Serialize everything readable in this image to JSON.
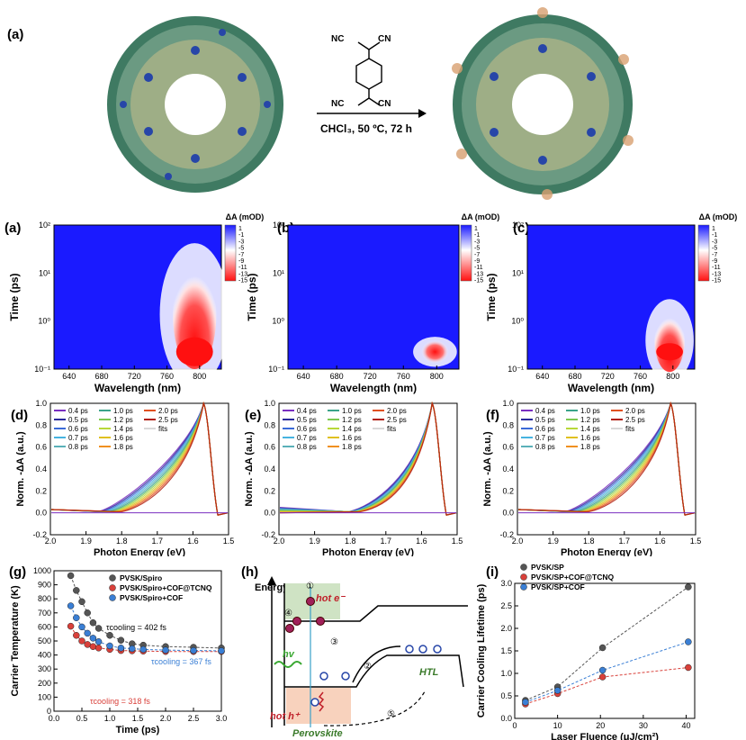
{
  "top": {
    "panel_label": "(a)",
    "reagent_cn": "CN",
    "reagent_nc": "NC",
    "conditions": "CHCl₃, 50 ºC, 72 h"
  },
  "heatmaps": {
    "labels": [
      "(a)",
      "(b)",
      "(c)"
    ],
    "cbar_title": "ΔA (mOD)",
    "cbar_ticks": [
      "1",
      "-1",
      "-3",
      "-5",
      "-7",
      "-9",
      "-11",
      "-13",
      "-15"
    ],
    "ylabel": "Time (ps)",
    "xlabel": "Wavelength (nm)",
    "xticks": [
      "640",
      "680",
      "720",
      "760",
      "800"
    ],
    "yticks": [
      "10⁻¹",
      "10⁰",
      "10¹",
      "10²"
    ]
  },
  "spectra": {
    "labels": [
      "(d)",
      "(e)",
      "(f)"
    ],
    "ylabel": "Norm. -ΔA (a.u.)",
    "xlabel": "Photon Energy (eV)",
    "xticks": [
      "2.0",
      "1.9",
      "1.8",
      "1.7",
      "1.6",
      "1.5"
    ],
    "yticks": [
      "-0.2",
      "0.0",
      "0.2",
      "0.4",
      "0.6",
      "0.8",
      "1.0"
    ],
    "legend": [
      "0.4 ps",
      "0.5 ps",
      "0.6 ps",
      "0.7 ps",
      "0.8 ps",
      "1.0 ps",
      "1.2 ps",
      "1.4 ps",
      "1.6 ps",
      "1.8 ps",
      "2.0 ps",
      "2.5 ps",
      "fits"
    ],
    "legend_colors": [
      "#7a2fc0",
      "#2a2a9a",
      "#3a6ad8",
      "#46b3e0",
      "#5ab0b8",
      "#3aa38a",
      "#7cc850",
      "#b8d838",
      "#e0c020",
      "#f09020",
      "#e05020",
      "#b02010",
      "#b0b0b0"
    ]
  },
  "chart_data": [
    {
      "type": "scatter",
      "panel": "(g)",
      "xlabel": "Time (ps)",
      "ylabel": "Carrier Temperature (K)",
      "xlim": [
        0,
        3.0
      ],
      "ylim": [
        0,
        1000
      ],
      "xticks": [
        "0.0",
        "0.5",
        "1.0",
        "1.5",
        "2.0",
        "2.5",
        "3.0"
      ],
      "yticks": [
        "0",
        "100",
        "200",
        "300",
        "400",
        "500",
        "600",
        "700",
        "800",
        "900",
        "1000"
      ],
      "annotations": [
        "τcooling = 402 fs",
        "τcooling = 367 fs",
        "τcooling = 318 fs"
      ],
      "legend_position": "top-right",
      "series": [
        {
          "name": "PVSK/Spiro",
          "color": "#555555",
          "x": [
            0.3,
            0.4,
            0.5,
            0.6,
            0.7,
            0.8,
            1.0,
            1.2,
            1.4,
            1.6,
            2.0,
            2.5,
            3.0
          ],
          "y": [
            965,
            860,
            780,
            700,
            630,
            590,
            540,
            505,
            480,
            470,
            460,
            455,
            450
          ]
        },
        {
          "name": "PVSK/Spiro+COF@TCNQ",
          "color": "#d9403a",
          "x": [
            0.3,
            0.4,
            0.5,
            0.6,
            0.7,
            0.8,
            1.0,
            1.2,
            1.4,
            1.6,
            2.0,
            2.5,
            3.0
          ],
          "y": [
            605,
            540,
            500,
            475,
            460,
            450,
            440,
            432,
            430,
            428,
            425,
            425,
            425
          ]
        },
        {
          "name": "PVSK/Spiro+COF",
          "color": "#3a7fd5",
          "x": [
            0.3,
            0.4,
            0.5,
            0.6,
            0.7,
            0.8,
            1.0,
            1.2,
            1.4,
            1.6,
            2.0,
            2.5,
            3.0
          ],
          "y": [
            750,
            665,
            600,
            555,
            520,
            495,
            465,
            450,
            445,
            440,
            435,
            432,
            430
          ]
        }
      ]
    },
    {
      "type": "scatter",
      "panel": "(i)",
      "xlabel": "Laser Fluence (μJ/cm²)",
      "ylabel": "Carrier Cooling Lifetime (ps)",
      "xlim": [
        0,
        42
      ],
      "ylim": [
        0,
        3.0
      ],
      "xticks": [
        "0",
        "10",
        "20",
        "30",
        "40"
      ],
      "yticks": [
        "0.0",
        "0.5",
        "1.0",
        "1.5",
        "2.0",
        "2.5",
        "3.0"
      ],
      "legend_position": "top-left",
      "series": [
        {
          "name": "PVSK/SP",
          "color": "#555555",
          "x": [
            2.5,
            10,
            20.5,
            40.5
          ],
          "y": [
            0.4,
            0.7,
            1.57,
            2.92
          ]
        },
        {
          "name": "PVSK/SP+COF@TCNQ",
          "color": "#d9403a",
          "x": [
            2.5,
            10,
            20.5,
            40.5
          ],
          "y": [
            0.32,
            0.55,
            0.92,
            1.13
          ]
        },
        {
          "name": "PVSK/SP+COF",
          "color": "#3a7fd5",
          "x": [
            2.5,
            10,
            20.5,
            40.5
          ],
          "y": [
            0.36,
            0.62,
            1.07,
            1.7
          ]
        }
      ]
    }
  ],
  "diagram_h": {
    "label": "(h)",
    "energy": "Energy",
    "hot_e": "hot e⁻",
    "hot_h": "hot h⁺",
    "hv": "hv",
    "htl": "HTL",
    "perovskite": "Perovskite",
    "steps": [
      "①",
      "②",
      "③",
      "④",
      "⑤"
    ]
  },
  "colors": {
    "heat_blue": "#1a1aff",
    "heat_red": "#ff1010",
    "grey_series": "#555555",
    "red_series": "#d9403a",
    "blue_series": "#3a7fd5"
  }
}
